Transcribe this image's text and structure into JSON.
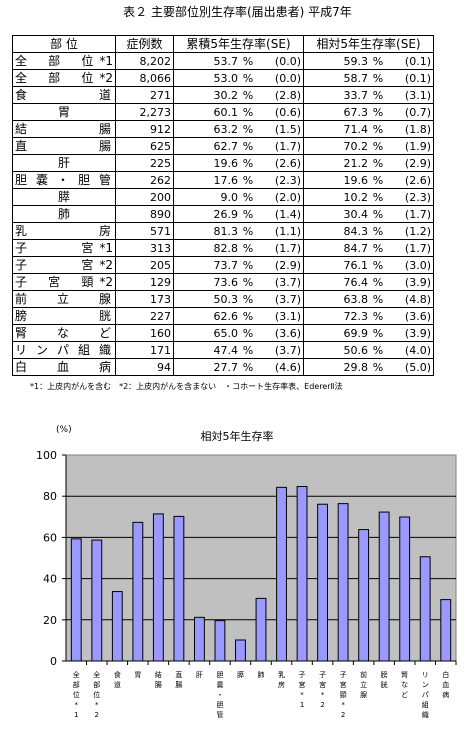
{
  "title": "表２ 主要部位別生存率(届出患者) 平成7年",
  "table": {
    "headers": [
      "部 位",
      "症例数",
      "累積5年生存率(SE)",
      "相対5年生存率(SE)"
    ],
    "rows": [
      {
        "site": "全部位",
        "note": "*1",
        "n": "8,202",
        "cum": "53.7",
        "cum_se": "(0.0)",
        "rel": "59.3",
        "rel_se": "(0.1)"
      },
      {
        "site": "全部位",
        "note": "*2",
        "n": "8,066",
        "cum": "53.0",
        "cum_se": "(0.0)",
        "rel": "58.7",
        "rel_se": "(0.1)"
      },
      {
        "site": "食道",
        "note": "",
        "n": "271",
        "cum": "30.2",
        "cum_se": "(2.8)",
        "rel": "33.7",
        "rel_se": "(3.1)"
      },
      {
        "site": "胃",
        "note": "",
        "n": "2,273",
        "cum": "60.1",
        "cum_se": "(0.6)",
        "rel": "67.3",
        "rel_se": "(0.7)"
      },
      {
        "site": "結腸",
        "note": "",
        "n": "912",
        "cum": "63.2",
        "cum_se": "(1.5)",
        "rel": "71.4",
        "rel_se": "(1.8)"
      },
      {
        "site": "直腸",
        "note": "",
        "n": "625",
        "cum": "62.7",
        "cum_se": "(1.7)",
        "rel": "70.2",
        "rel_se": "(1.9)"
      },
      {
        "site": "肝",
        "note": "",
        "n": "225",
        "cum": "19.6",
        "cum_se": "(2.6)",
        "rel": "21.2",
        "rel_se": "(2.9)"
      },
      {
        "site": "胆嚢・胆管",
        "note": "",
        "n": "262",
        "cum": "17.6",
        "cum_se": "(2.3)",
        "rel": "19.6",
        "rel_se": "(2.6)"
      },
      {
        "site": "膵",
        "note": "",
        "n": "200",
        "cum": "9.0",
        "cum_se": "(2.0)",
        "rel": "10.2",
        "rel_se": "(2.3)"
      },
      {
        "site": "肺",
        "note": "",
        "n": "890",
        "cum": "26.9",
        "cum_se": "(1.4)",
        "rel": "30.4",
        "rel_se": "(1.7)"
      },
      {
        "site": "乳房",
        "note": "",
        "n": "571",
        "cum": "81.3",
        "cum_se": "(1.1)",
        "rel": "84.3",
        "rel_se": "(1.2)"
      },
      {
        "site": "子宮",
        "note": "*1",
        "n": "313",
        "cum": "82.8",
        "cum_se": "(1.7)",
        "rel": "84.7",
        "rel_se": "(1.7)"
      },
      {
        "site": "子宮",
        "note": "*2",
        "n": "205",
        "cum": "73.7",
        "cum_se": "(2.9)",
        "rel": "76.1",
        "rel_se": "(3.0)"
      },
      {
        "site": "子宮頸",
        "note": "*2",
        "n": "129",
        "cum": "73.6",
        "cum_se": "(3.7)",
        "rel": "76.4",
        "rel_se": "(3.9)"
      },
      {
        "site": "前立腺",
        "note": "",
        "n": "173",
        "cum": "50.3",
        "cum_se": "(3.7)",
        "rel": "63.8",
        "rel_se": "(4.8)"
      },
      {
        "site": "膀胱",
        "note": "",
        "n": "227",
        "cum": "62.6",
        "cum_se": "(3.1)",
        "rel": "72.3",
        "rel_se": "(3.6)"
      },
      {
        "site": "腎など",
        "note": "",
        "n": "160",
        "cum": "65.0",
        "cum_se": "(3.6)",
        "rel": "69.9",
        "rel_se": "(3.9)"
      },
      {
        "site": "リンパ組織",
        "note": "",
        "n": "171",
        "cum": "47.4",
        "cum_se": "(3.7)",
        "rel": "50.6",
        "rel_se": "(4.0)"
      },
      {
        "site": "白血病",
        "note": "",
        "n": "94",
        "cum": "27.7",
        "cum_se": "(4.6)",
        "rel": "29.8",
        "rel_se": "(5.0)"
      }
    ],
    "percent_sign": "%"
  },
  "footnote": "*1：上皮内がんを含む　*2：上皮内がんを含まない　・コホート生存率表、EdererⅡ法",
  "chart_data": {
    "type": "bar",
    "title": "相対5年生存率",
    "ylabel": "(%)",
    "ylim": [
      0,
      100
    ],
    "yticks": [
      0,
      20,
      40,
      60,
      80,
      100
    ],
    "grid": true,
    "categories": [
      "全部位*1",
      "全部位*2",
      "食道",
      "胃",
      "結腸",
      "直腸",
      "肝",
      "胆嚢・胆管",
      "膵",
      "肺",
      "乳房",
      "子宮*1",
      "子宮*2",
      "子宮頸*2",
      "前立腺",
      "膀胱",
      "腎など",
      "リンパ組織",
      "白血病"
    ],
    "values": [
      59.3,
      58.7,
      33.7,
      67.3,
      71.4,
      70.2,
      21.2,
      19.6,
      10.2,
      30.4,
      84.3,
      84.7,
      76.1,
      76.4,
      63.8,
      72.3,
      69.9,
      50.6,
      29.8
    ],
    "colors": {
      "plot_bg": "#c0c0c0",
      "bar": "#9999ff",
      "bar_stroke": "#000000"
    }
  }
}
